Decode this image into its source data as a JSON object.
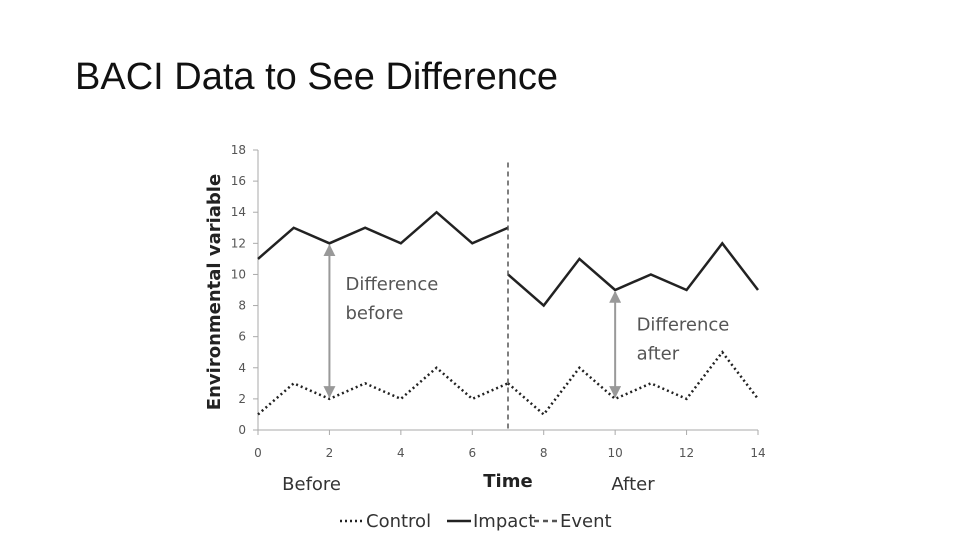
{
  "slide": {
    "title": "BACI Data to See Difference"
  },
  "chart_data": {
    "type": "line",
    "title": "",
    "xlabel": "Time",
    "ylabel": "Environmental variable",
    "xlim": [
      0,
      14
    ],
    "ylim": [
      0,
      18
    ],
    "xticks": [
      0,
      2,
      4,
      6,
      8,
      10,
      12,
      14
    ],
    "yticks": [
      0,
      2,
      4,
      6,
      8,
      10,
      12,
      14,
      16,
      18
    ],
    "grid": false,
    "legend_position": "bottom",
    "phase_labels": [
      {
        "text": "Before",
        "x": 1.5
      },
      {
        "text": "After",
        "x": 10.5
      }
    ],
    "series": [
      {
        "name": "Control",
        "style": "dotted",
        "color": "#222222",
        "segments": [
          {
            "x": [
              0,
              1,
              2,
              3,
              4,
              5,
              6,
              7
            ],
            "y": [
              1,
              3,
              2,
              3,
              2,
              4,
              2,
              3
            ]
          },
          {
            "x": [
              7,
              8,
              9,
              10,
              11,
              12,
              13,
              14
            ],
            "y": [
              3,
              1,
              4,
              2,
              3,
              2,
              5,
              2
            ]
          }
        ]
      },
      {
        "name": "Impact",
        "style": "solid",
        "color": "#222222",
        "segments": [
          {
            "x": [
              0,
              1,
              2,
              3,
              4,
              5,
              6,
              7
            ],
            "y": [
              11,
              13,
              12,
              13,
              12,
              14,
              12,
              13
            ]
          },
          {
            "x": [
              7,
              8,
              9,
              10,
              11,
              12,
              13,
              14
            ],
            "y": [
              10,
              8,
              11,
              9,
              10,
              9,
              12,
              9
            ]
          }
        ]
      },
      {
        "name": "Event",
        "style": "dashed",
        "color": "#555555",
        "vline_x": 7
      }
    ],
    "annotations": [
      {
        "lines": [
          "Difference",
          "before"
        ],
        "arrow": {
          "x": 2,
          "y_from": 12,
          "y_to": 2
        },
        "text_x": 2.45,
        "text_y": 9
      },
      {
        "lines": [
          "Difference",
          "after"
        ],
        "arrow": {
          "x": 10,
          "y_from": 9,
          "y_to": 2
        },
        "text_x": 10.6,
        "text_y": 6.4
      }
    ],
    "arrow_color": "#999999"
  }
}
